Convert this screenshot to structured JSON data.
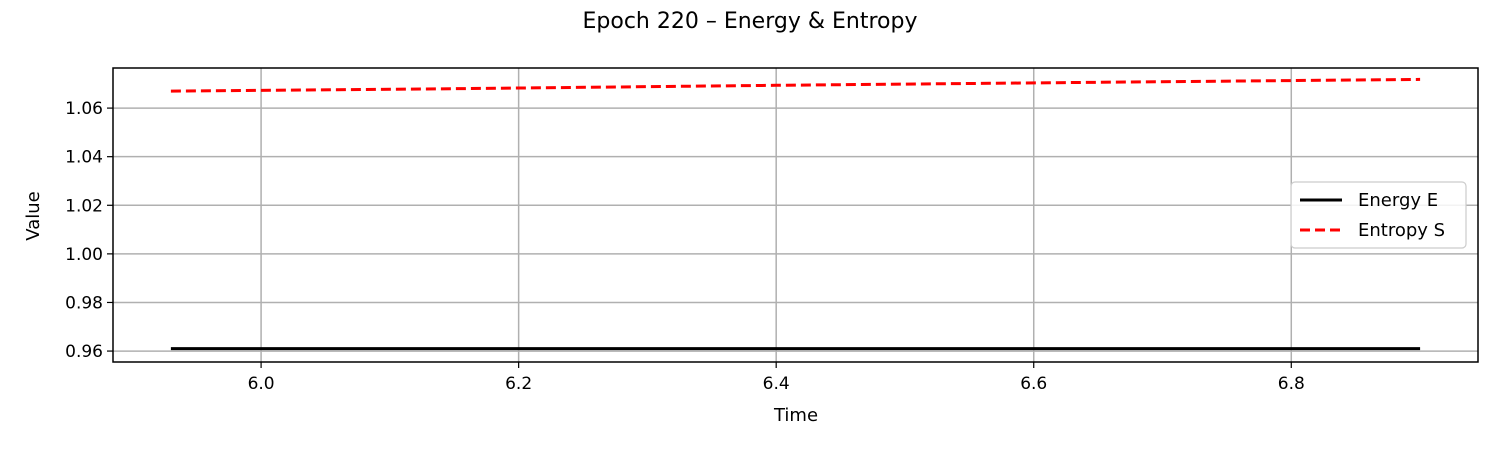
{
  "chart_data": {
    "type": "line",
    "title": "Epoch 220 – Energy & Entropy",
    "xlabel": "Time",
    "ylabel": "Value",
    "xlim": [
      5.885,
      6.945
    ],
    "ylim": [
      0.9555,
      1.0765
    ],
    "xticks": [
      "6.0",
      "6.2",
      "6.4",
      "6.6",
      "6.8"
    ],
    "xtick_values": [
      6.0,
      6.2,
      6.4,
      6.6,
      6.8
    ],
    "yticks": [
      "0.96",
      "0.98",
      "1.00",
      "1.02",
      "1.04",
      "1.06"
    ],
    "ytick_values": [
      0.96,
      0.98,
      1.0,
      1.02,
      1.04,
      1.06
    ],
    "grid": true,
    "legend_position": "center-right",
    "series": [
      {
        "name": "Energy E",
        "color": "#000000",
        "style": "solid",
        "x": [
          5.93,
          6.9
        ],
        "y": [
          0.961,
          0.961
        ]
      },
      {
        "name": "Entropy S",
        "color": "#ff0000",
        "style": "dashed",
        "x": [
          5.93,
          6.15,
          6.4,
          6.65,
          6.9
        ],
        "y": [
          1.067,
          1.068,
          1.0694,
          1.0706,
          1.0718
        ]
      }
    ]
  }
}
